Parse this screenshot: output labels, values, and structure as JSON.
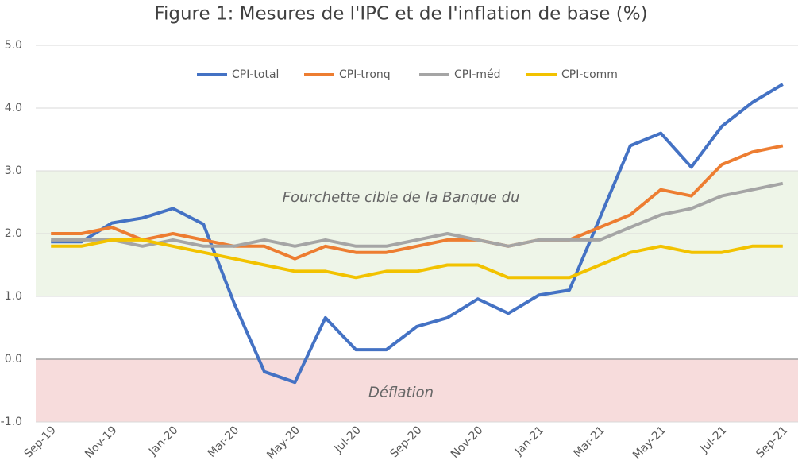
{
  "chart_data": {
    "type": "line",
    "title": "Figure 1: Mesures de l'IPC et de l'inflation de base (%)",
    "categories": [
      "Sep-19",
      null,
      "Nov-19",
      null,
      "Jan-20",
      null,
      "Mar-20",
      null,
      "May-20",
      null,
      "Jul-20",
      null,
      "Sep-20",
      null,
      "Nov-20",
      null,
      "Jan-21",
      null,
      "Mar-21",
      null,
      "May-21",
      null,
      "Jul-21",
      null,
      "Sep-21"
    ],
    "series": [
      {
        "name": "CPI-total",
        "color": "#4472c4",
        "values": [
          1.87,
          1.87,
          2.17,
          2.25,
          2.4,
          2.15,
          0.9,
          -0.2,
          -0.37,
          0.66,
          0.15,
          0.15,
          0.52,
          0.66,
          0.96,
          0.73,
          1.02,
          1.1,
          2.25,
          3.4,
          3.6,
          3.06,
          3.71,
          4.09,
          4.38
        ]
      },
      {
        "name": "CPI-tronq",
        "color": "#ed7d31",
        "values": [
          2.0,
          2.0,
          2.1,
          1.9,
          2.0,
          1.9,
          1.8,
          1.8,
          1.6,
          1.8,
          1.7,
          1.7,
          1.8,
          1.9,
          1.9,
          1.8,
          1.9,
          1.9,
          2.1,
          2.3,
          2.7,
          2.6,
          3.1,
          3.3,
          3.4
        ]
      },
      {
        "name": "CPI-méd",
        "color": "#a5a5a5",
        "values": [
          1.9,
          1.9,
          1.9,
          1.8,
          1.9,
          1.8,
          1.8,
          1.9,
          1.8,
          1.9,
          1.8,
          1.8,
          1.9,
          2.0,
          1.9,
          1.8,
          1.9,
          1.9,
          1.9,
          2.1,
          2.3,
          2.4,
          2.6,
          2.7,
          2.8
        ]
      },
      {
        "name": "CPI-comm",
        "color": "#f2c200",
        "values": [
          1.8,
          1.8,
          1.9,
          1.9,
          1.8,
          1.7,
          1.6,
          1.5,
          1.4,
          1.4,
          1.3,
          1.4,
          1.4,
          1.5,
          1.5,
          1.3,
          1.3,
          1.3,
          1.5,
          1.7,
          1.8,
          1.7,
          1.7,
          1.8,
          1.8
        ]
      }
    ],
    "bands": [
      {
        "label": "Fourchette cible de la Banque du",
        "from": 1,
        "to": 3,
        "color": "#eef5e8"
      },
      {
        "label": "Déflation",
        "from": -1,
        "to": 0,
        "color": "#f7dcdc"
      }
    ],
    "ylim": [
      -1,
      5
    ],
    "yticks": [
      {
        "value": -1,
        "label": "-1.0"
      },
      {
        "value": 0,
        "label": "0.0"
      },
      {
        "value": 1,
        "label": "1.0"
      },
      {
        "value": 2,
        "label": "2.0"
      },
      {
        "value": 3,
        "label": "3.0"
      },
      {
        "value": 4,
        "label": "4.0"
      },
      {
        "value": 5,
        "label": "5.0"
      }
    ],
    "grid": true,
    "legend": "top"
  }
}
